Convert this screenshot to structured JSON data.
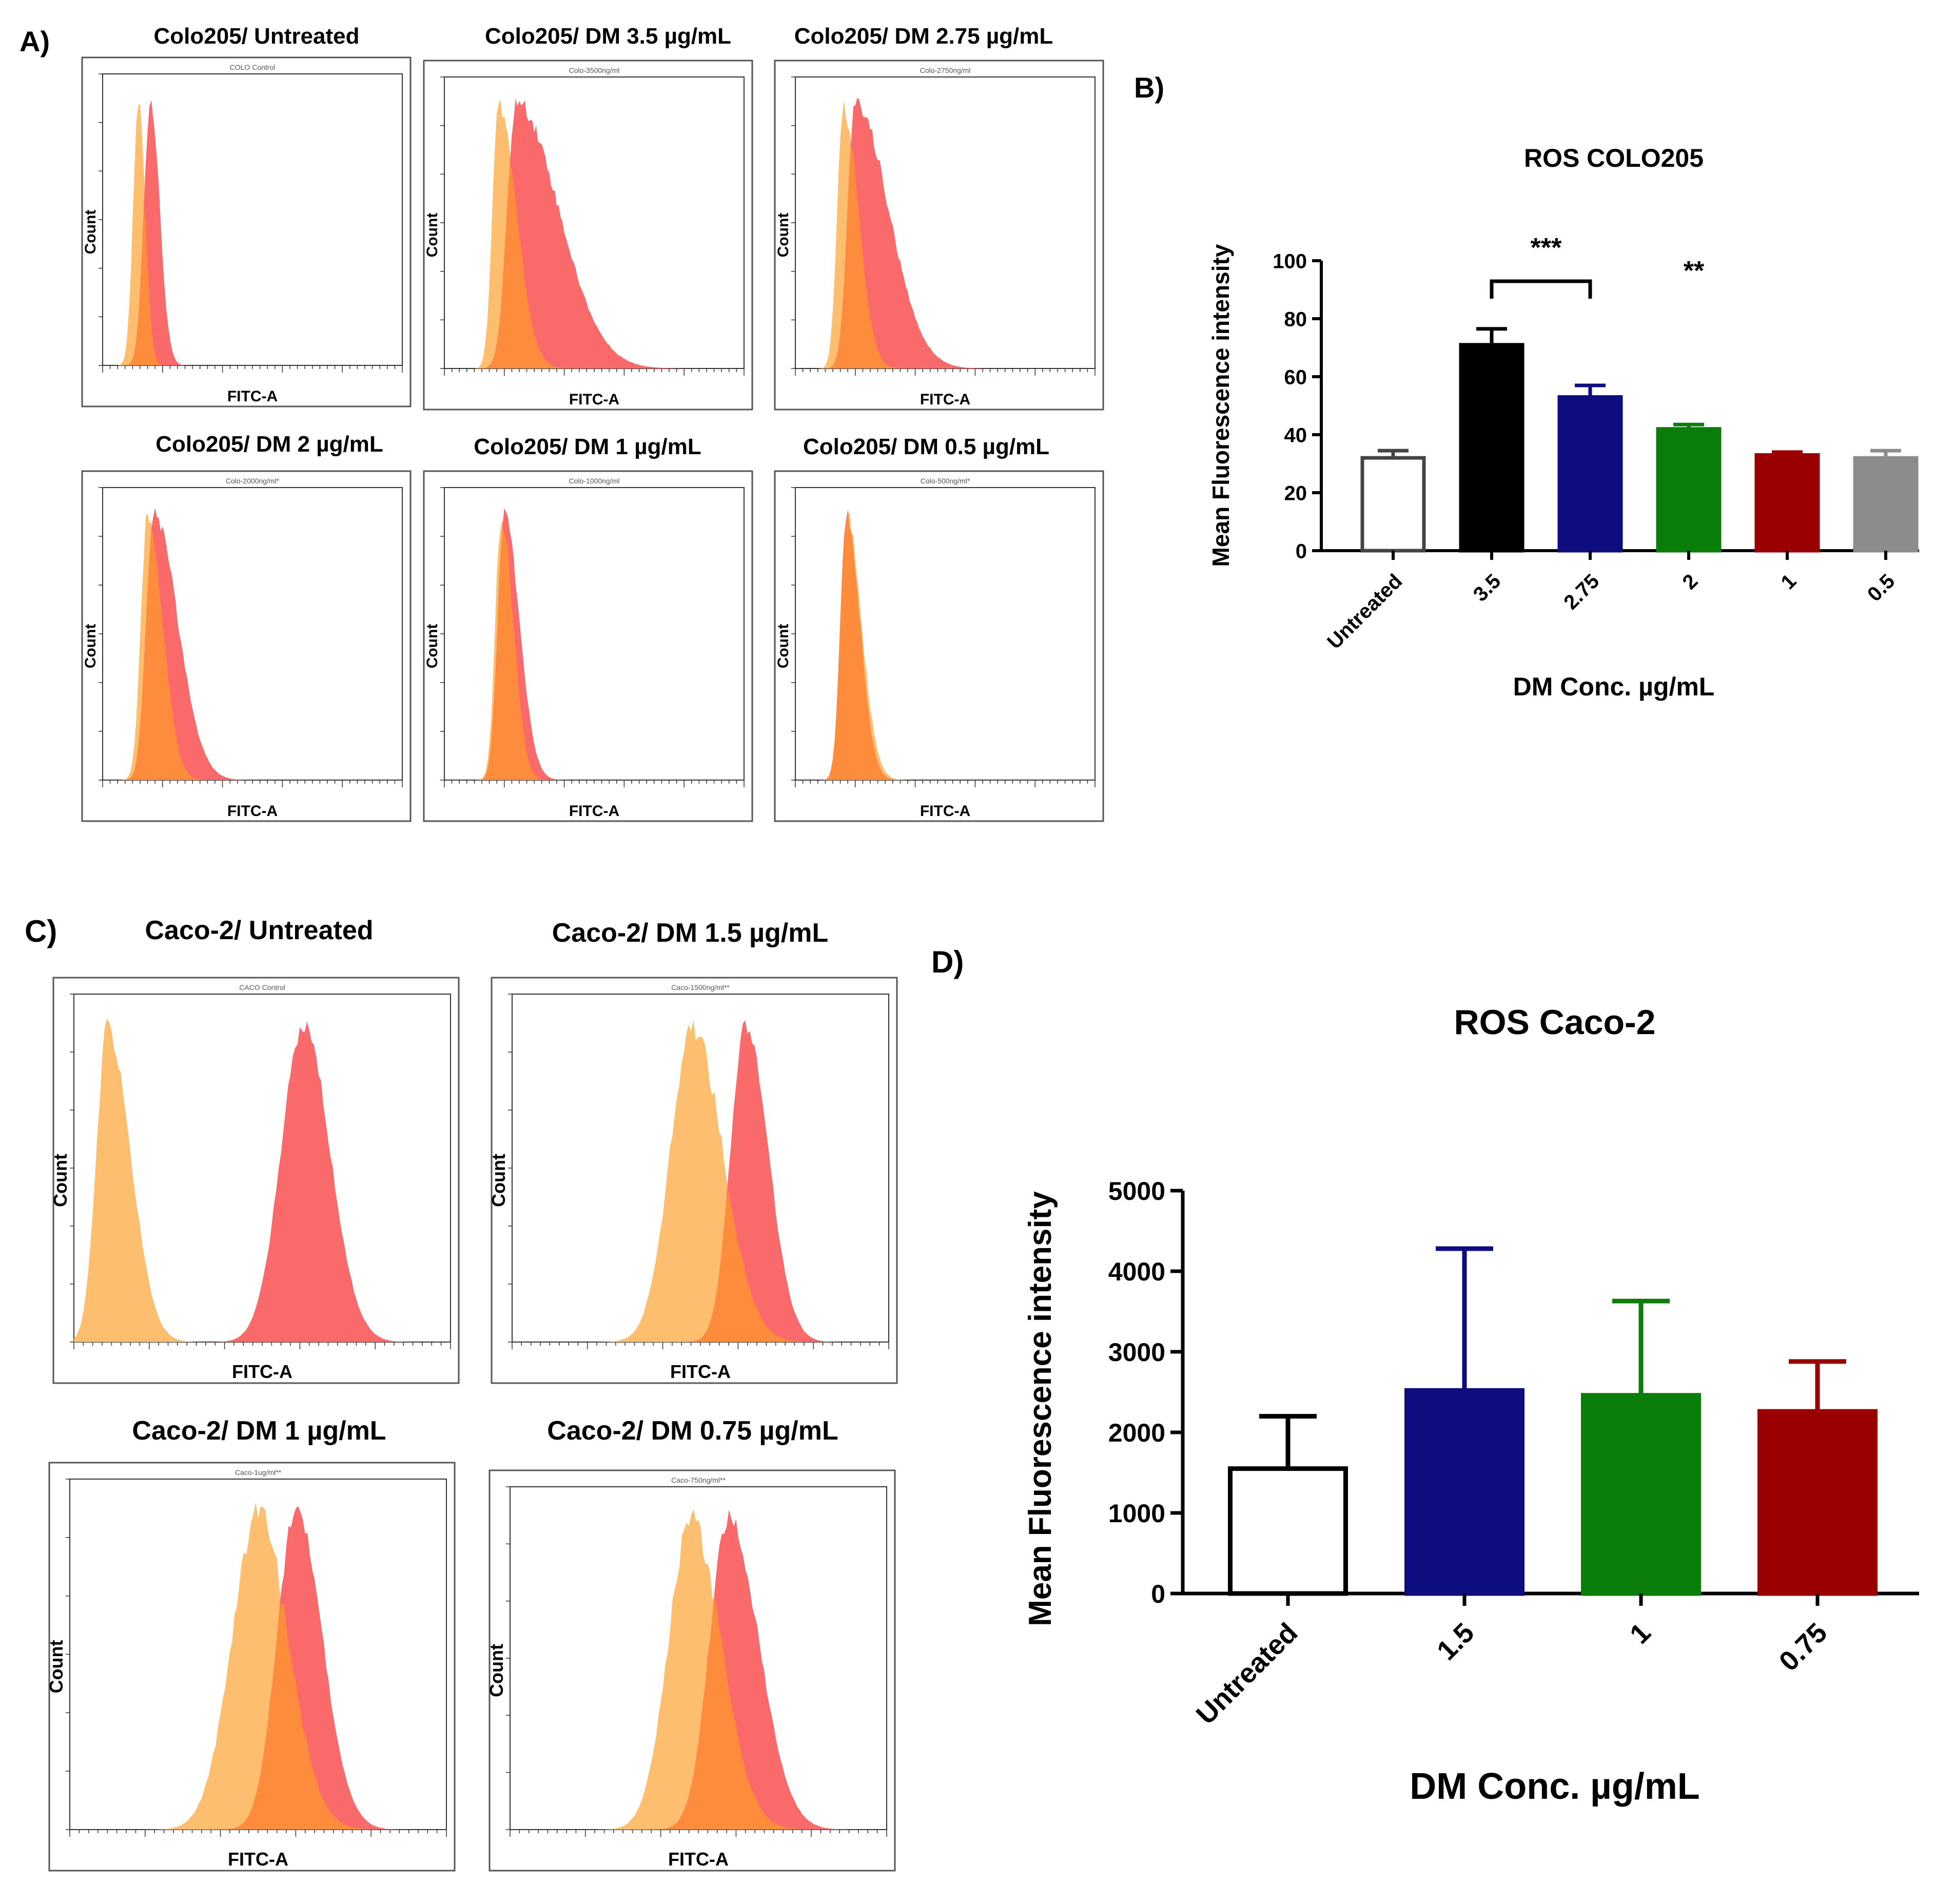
{
  "panel_labels": {
    "a": "A)",
    "b": "B)",
    "c": "C)",
    "d": "D)"
  },
  "histogram_axis": {
    "xlabel": "FITC-A",
    "ylabel": "Count"
  },
  "histogram_colors": {
    "control": "#fdbf6f",
    "treated": "#fb6a6a",
    "overlap": "#fd8d3c"
  },
  "histograms": [
    {
      "title": "Colo205/ Untreated",
      "tag": "COLO Control",
      "control": [
        0.12,
        0.018,
        0.022
      ],
      "treated": [
        0.16,
        0.022,
        0.03
      ]
    },
    {
      "title": "Colo205/ DM 3.5 µg/mL",
      "tag": "Colo-3500ng/ml",
      "control": [
        0.18,
        0.02,
        0.06
      ],
      "treated": [
        0.24,
        0.03,
        0.14
      ]
    },
    {
      "title": "Colo205/ DM 2.75 µg/mL",
      "tag": "Colo-2750ng/ml",
      "control": [
        0.16,
        0.02,
        0.05
      ],
      "treated": [
        0.2,
        0.025,
        0.11
      ]
    },
    {
      "title": "Colo205/ DM 2 µg/mL",
      "tag": "Colo-2000ng/ml*",
      "control": [
        0.15,
        0.022,
        0.05
      ],
      "treated": [
        0.17,
        0.025,
        0.08
      ]
    },
    {
      "title": "Colo205/ DM 1 µg/mL",
      "tag": "Colo-1000ng/ml",
      "control": [
        0.19,
        0.02,
        0.04
      ],
      "treated": [
        0.2,
        0.022,
        0.05
      ]
    },
    {
      "title": "Colo205/ DM 0.5 µg/mL",
      "tag": "Colo-500ng/ml*",
      "control": [
        0.17,
        0.02,
        0.05
      ],
      "treated": [
        0.17,
        0.02,
        0.045
      ]
    },
    {
      "title": "Caco-2/ Untreated",
      "tag": "CACO Control",
      "control": [
        0.09,
        0.03,
        0.06
      ],
      "treated": [
        0.61,
        0.06,
        0.07
      ]
    },
    {
      "title": "Caco-2/ DM 1.5 µg/mL",
      "tag": "Caco-1500ng/ml**",
      "control": [
        0.48,
        0.06,
        0.08
      ],
      "treated": [
        0.62,
        0.04,
        0.06
      ]
    },
    {
      "title": "Caco-2/ DM 1 µg/mL",
      "tag": "Caco-1ug/ml**",
      "control": [
        0.5,
        0.07,
        0.08
      ],
      "treated": [
        0.6,
        0.05,
        0.07
      ]
    },
    {
      "title": "Caco-2/ DM 0.75 µg/mL",
      "tag": "Caco-750ng/ml**",
      "control": [
        0.48,
        0.06,
        0.08
      ],
      "treated": [
        0.58,
        0.05,
        0.08
      ]
    }
  ],
  "chart_data": [
    {
      "type": "bar",
      "title": "ROS COLO205",
      "xlabel": "DM Conc. µg/mL",
      "ylabel": "Mean Fluorescence intensity",
      "categories": [
        "Untreated",
        "3.5",
        "2.75",
        "2",
        "1",
        "0.5"
      ],
      "values": [
        32,
        71,
        53,
        42,
        33,
        32
      ],
      "errors": [
        2.5,
        5.5,
        4,
        1.5,
        1,
        2.5
      ],
      "colors": [
        "#ffffff",
        "#000000",
        "#0d0d80",
        "#0a7d0a",
        "#9a0000",
        "#8c8c8c"
      ],
      "edge_colors": [
        "#444444",
        "#000000",
        "#0d0d80",
        "#0a7d0a",
        "#9a0000",
        "#8c8c8c"
      ],
      "ylim": [
        0,
        100
      ],
      "yticks": [
        0,
        20,
        40,
        60,
        80,
        100
      ],
      "annotations": [
        {
          "text": "***",
          "from": "3.5",
          "to": "2.75",
          "bracket": true
        },
        {
          "text": "**",
          "at": "2",
          "bracket": false
        }
      ]
    },
    {
      "type": "bar",
      "title": "ROS Caco-2",
      "xlabel": "DM Conc. µg/mL",
      "ylabel": "Mean Fluorescence intensity",
      "categories": [
        "Untreated",
        "1.5",
        "1",
        "0.75"
      ],
      "values": [
        1550,
        2520,
        2460,
        2260
      ],
      "errors": [
        650,
        1760,
        1170,
        620
      ],
      "colors": [
        "#ffffff",
        "#0d0d80",
        "#0a7d0a",
        "#9a0000"
      ],
      "edge_colors": [
        "#000000",
        "#0d0d80",
        "#0a7d0a",
        "#9a0000"
      ],
      "ylim": [
        0,
        5000
      ],
      "yticks": [
        0,
        1000,
        2000,
        3000,
        4000,
        5000
      ]
    }
  ]
}
